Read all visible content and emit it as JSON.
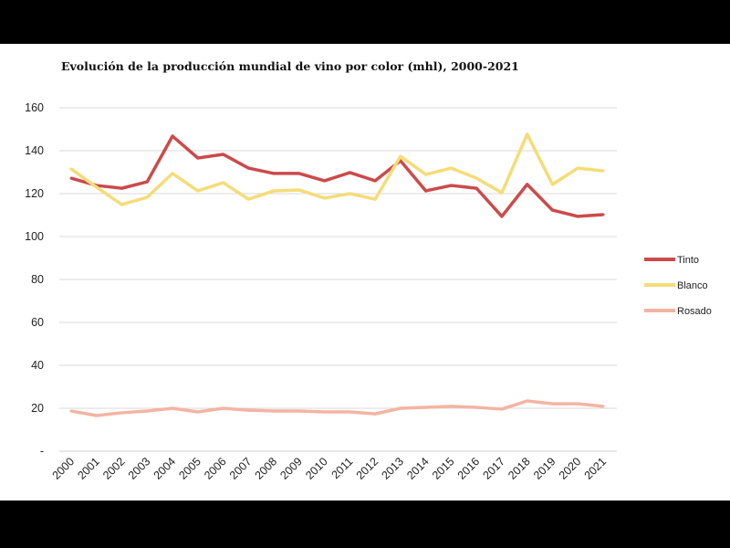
{
  "chart_data": {
    "type": "line",
    "title": "Evolución de la producción mundial de vino por color (mhl), 2000-2021",
    "xlabel": "",
    "ylabel": "",
    "ylim": [
      0,
      160
    ],
    "yticks": [
      0,
      20,
      40,
      60,
      80,
      100,
      120,
      140,
      160
    ],
    "ytick_labels": [
      "-",
      "20",
      "40",
      "60",
      "80",
      "100",
      "120",
      "140",
      "160"
    ],
    "grid": true,
    "legend_position": "right",
    "categories": [
      "2000",
      "2001",
      "2002",
      "2003",
      "2004",
      "2005",
      "2006",
      "2007",
      "2008",
      "2009",
      "2010",
      "2011",
      "2012",
      "2013",
      "2014",
      "2015",
      "2016",
      "2017",
      "2018",
      "2019",
      "2020",
      "2021"
    ],
    "series": [
      {
        "name": "Tinto",
        "color": "#cc4a4a",
        "values": [
          127.2,
          123.8,
          122.5,
          125.5,
          146.8,
          136.6,
          138.3,
          131.9,
          129.4,
          129.4,
          126.0,
          129.8,
          126.0,
          135.3,
          121.3,
          123.8,
          122.5,
          109.4,
          124.3,
          112.3,
          109.4,
          110.2
        ]
      },
      {
        "name": "Blanco",
        "color": "#f5dc78",
        "values": [
          131.5,
          123.0,
          114.9,
          118.3,
          129.4,
          121.3,
          125.1,
          117.4,
          121.3,
          121.7,
          117.9,
          120.0,
          117.4,
          137.4,
          128.9,
          131.9,
          127.2,
          120.4,
          147.7,
          124.3,
          131.9,
          130.6
        ]
      },
      {
        "name": "Rosado",
        "color": "#f4b4a2",
        "values": [
          18.7,
          16.6,
          17.9,
          18.7,
          20.0,
          18.3,
          20.0,
          19.1,
          18.7,
          18.7,
          18.3,
          18.3,
          17.4,
          20.0,
          20.4,
          20.9,
          20.4,
          19.6,
          23.4,
          22.1,
          22.1,
          20.9
        ]
      }
    ]
  }
}
